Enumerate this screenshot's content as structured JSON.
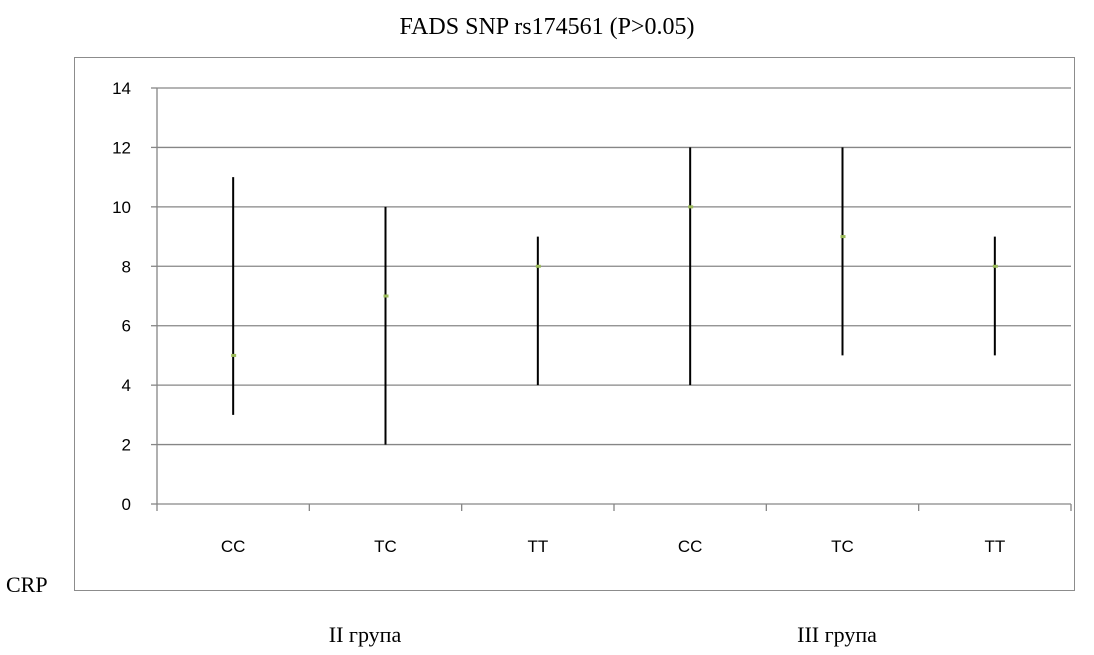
{
  "chart_data": {
    "type": "scatter",
    "title": "FADS SNP rs174561 (P>0.05)",
    "ylabel": "CRP",
    "categories": [
      "CC",
      "TC",
      "TT",
      "CC",
      "TC",
      "TT"
    ],
    "groups": [
      {
        "label": "II група",
        "categories": [
          "CC",
          "TC",
          "TT"
        ]
      },
      {
        "label": "III група",
        "categories": [
          "CC",
          "TC",
          "TT"
        ]
      }
    ],
    "median": [
      5,
      7,
      8,
      10,
      9,
      8
    ],
    "low": [
      3,
      2,
      4,
      4,
      5,
      5
    ],
    "high": [
      11,
      10,
      9,
      12,
      12,
      9
    ],
    "ylim": [
      0,
      14
    ],
    "yticks": [
      0,
      2,
      4,
      6,
      8,
      10,
      12,
      14
    ],
    "grid": true,
    "colors": {
      "range_line": "#000000",
      "median_marker": "#9bbb59",
      "grid": "#868686"
    }
  }
}
